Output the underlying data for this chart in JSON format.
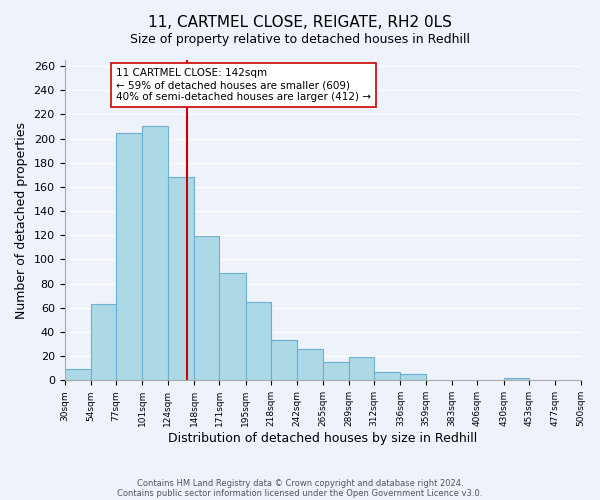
{
  "title1": "11, CARTMEL CLOSE, REIGATE, RH2 0LS",
  "title2": "Size of property relative to detached houses in Redhill",
  "xlabel": "Distribution of detached houses by size in Redhill",
  "ylabel": "Number of detached properties",
  "bin_edges": [
    30,
    54,
    77,
    101,
    124,
    148,
    171,
    195,
    218,
    242,
    265,
    289,
    312,
    336,
    359,
    383,
    406,
    430,
    453,
    477,
    500
  ],
  "bar_heights": [
    9,
    63,
    205,
    210,
    168,
    119,
    89,
    65,
    33,
    26,
    15,
    19,
    7,
    5,
    0,
    0,
    0,
    2,
    0,
    0
  ],
  "bar_color": "#add8e6",
  "bar_edge_color": "#6baed6",
  "vline_x": 142,
  "vline_color": "#cc0000",
  "annotation_title": "11 CARTMEL CLOSE: 142sqm",
  "annotation_line1": "← 59% of detached houses are smaller (609)",
  "annotation_line2": "40% of semi-detached houses are larger (412) →",
  "annotation_box_color": "#ffffff",
  "annotation_box_edge": "#cc0000",
  "ylim": [
    0,
    265
  ],
  "yticks": [
    0,
    20,
    40,
    60,
    80,
    100,
    120,
    140,
    160,
    180,
    200,
    220,
    240,
    260
  ],
  "xtick_labels": [
    "30sqm",
    "54sqm",
    "77sqm",
    "101sqm",
    "124sqm",
    "148sqm",
    "171sqm",
    "195sqm",
    "218sqm",
    "242sqm",
    "265sqm",
    "289sqm",
    "312sqm",
    "336sqm",
    "359sqm",
    "383sqm",
    "406sqm",
    "430sqm",
    "453sqm",
    "477sqm",
    "500sqm"
  ],
  "footnote1": "Contains HM Land Registry data © Crown copyright and database right 2024.",
  "footnote2": "Contains public sector information licensed under the Open Government Licence v3.0.",
  "bg_color": "#eef2fa",
  "grid_color": "#ffffff"
}
